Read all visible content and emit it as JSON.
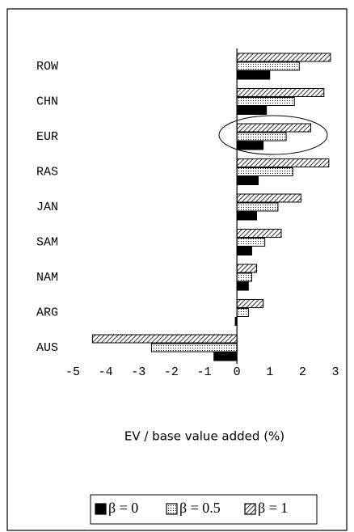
{
  "chart_data": {
    "type": "hbar",
    "x_label": "EV / base value added (%)",
    "categories": [
      "ROW",
      "CHN",
      "EUR",
      "RAS",
      "JAN",
      "SAM",
      "NAM",
      "ARG",
      "AUS"
    ],
    "series": [
      {
        "name": "β = 0",
        "color": "#000000",
        "pattern": "solid",
        "values": [
          1.0,
          0.9,
          0.8,
          0.65,
          0.6,
          0.45,
          0.35,
          -0.05,
          -0.7
        ]
      },
      {
        "name": "β = 0.5",
        "color": "#000000",
        "pattern": "dots",
        "values": [
          1.9,
          1.75,
          1.5,
          1.7,
          1.25,
          0.85,
          0.45,
          0.35,
          -2.6
        ]
      },
      {
        "name": "β = 1",
        "color": "#000000",
        "pattern": "hatch",
        "values": [
          2.85,
          2.65,
          2.25,
          2.8,
          1.95,
          1.35,
          0.6,
          0.8,
          -4.4
        ]
      }
    ],
    "xlim": [
      -5,
      3
    ],
    "xticks": [
      -5,
      -4,
      -3,
      -2,
      -1,
      0,
      1,
      2,
      3
    ]
  }
}
